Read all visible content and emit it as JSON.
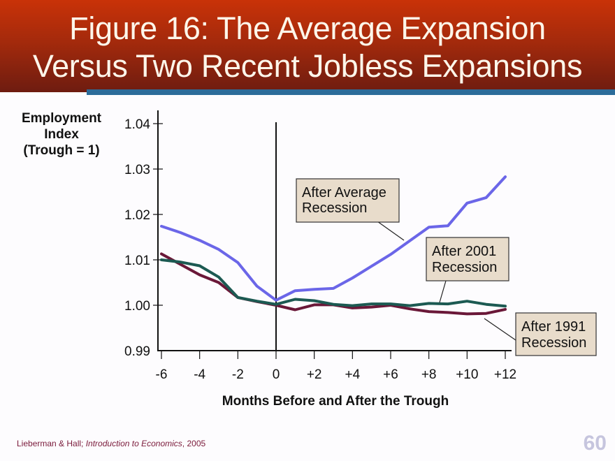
{
  "header": {
    "title_line1": "Figure 16:  The Average Expansion",
    "title_line2": "Versus Two Recent Jobless Expansions",
    "bg_color": "#b02e0a",
    "accent_bar_color": "#2c6c9a"
  },
  "axes": {
    "ylabel_line1": "Employment",
    "ylabel_line2": "Index",
    "ylabel_line3": "(Trough = 1)",
    "xlabel": "Months Before and After the Trough"
  },
  "footer": {
    "citation_prefix": "Lieberman & Hall; ",
    "citation_title": "Introduction to Economics",
    "citation_suffix": ", 2005",
    "page_number": "60"
  },
  "annotations": {
    "average": {
      "line1": "After Average",
      "line2": "Recession"
    },
    "r2001": {
      "line1": "After 2001",
      "line2": "Recession"
    },
    "r1991": {
      "line1": "After 1991",
      "line2": "Recession"
    }
  },
  "chart_data": {
    "type": "line",
    "title": "Figure 16: The Average Expansion Versus Two Recent Jobless Expansions",
    "xlabel": "Months Before and After the Trough",
    "ylabel": "Employment Index (Trough = 1)",
    "xlim": [
      -6,
      12
    ],
    "ylim": [
      0.99,
      1.04
    ],
    "x_ticks": [
      "-6",
      "-4",
      "-2",
      "0",
      "+2",
      "+4",
      "+6",
      "+8",
      "+10",
      "+12"
    ],
    "y_ticks": [
      "0.99",
      "1.00",
      "1.01",
      "1.02",
      "1.03",
      "1.04"
    ],
    "grid": false,
    "legend": "inline annotation boxes",
    "vertical_reference_line_at_x": 0,
    "x": [
      -6,
      -5,
      -4,
      -3,
      -2,
      -1,
      0,
      1,
      2,
      3,
      4,
      5,
      6,
      7,
      8,
      9,
      10,
      11,
      12
    ],
    "series": [
      {
        "name": "After Average Recession",
        "color": "#6b66e8",
        "values": [
          1.0174,
          1.016,
          1.0143,
          1.0123,
          1.0094,
          1.0042,
          1.0011,
          1.0032,
          1.0035,
          1.0037,
          1.006,
          1.0086,
          1.0112,
          1.0142,
          1.0172,
          1.0175,
          1.0225,
          1.0237,
          1.0283
        ]
      },
      {
        "name": "After 2001 Recession",
        "color": "#1c5a52",
        "values": [
          1.01,
          1.0095,
          1.0087,
          1.0062,
          1.0017,
          1.0009,
          1.0002,
          1.0013,
          1.001,
          1.0002,
          0.9999,
          1.0003,
          1.0003,
          0.9999,
          1.0004,
          1.0003,
          1.0009,
          1.0002,
          0.9998
        ]
      },
      {
        "name": "After 1991 Recession",
        "color": "#6a1838",
        "values": [
          1.0113,
          1.009,
          1.0067,
          1.005,
          1.0017,
          1.0008,
          1.0,
          0.999,
          1.0001,
          1.0001,
          0.9994,
          0.9996,
          1.0,
          0.9992,
          0.9986,
          0.9984,
          0.9981,
          0.9982,
          0.9991
        ]
      }
    ]
  }
}
